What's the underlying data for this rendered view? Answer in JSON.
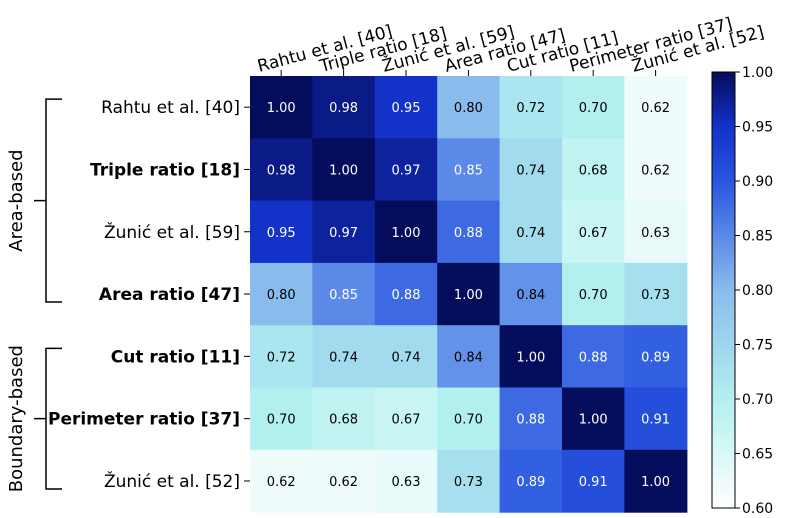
{
  "chart_data": {
    "type": "heatmap",
    "title": "",
    "labels": [
      "Rahtu et al. [40]",
      "Triple ratio [18]",
      "Žunić et al. [59]",
      "Area ratio [47]",
      "Cut ratio [11]",
      "Perimeter ratio [37]",
      "Žunić et al. [52]"
    ],
    "bold_rows": [
      false,
      true,
      false,
      true,
      true,
      true,
      false
    ],
    "values": [
      [
        1.0,
        0.98,
        0.95,
        0.8,
        0.72,
        0.7,
        0.62
      ],
      [
        0.98,
        1.0,
        0.97,
        0.85,
        0.74,
        0.68,
        0.62
      ],
      [
        0.95,
        0.97,
        1.0,
        0.88,
        0.74,
        0.67,
        0.63
      ],
      [
        0.8,
        0.85,
        0.88,
        1.0,
        0.84,
        0.7,
        0.73
      ],
      [
        0.72,
        0.74,
        0.74,
        0.84,
        1.0,
        0.88,
        0.89
      ],
      [
        0.7,
        0.68,
        0.67,
        0.7,
        0.88,
        1.0,
        0.91
      ],
      [
        0.62,
        0.62,
        0.63,
        0.73,
        0.89,
        0.91,
        1.0
      ]
    ],
    "value_range": [
      0.6,
      1.0
    ],
    "colorbar": {
      "ticks": [
        "1.00",
        "0.95",
        "0.90",
        "0.85",
        "0.80",
        "0.75",
        "0.70",
        "0.65",
        "0.60"
      ],
      "tick_values": [
        1.0,
        0.95,
        0.9,
        0.85,
        0.8,
        0.75,
        0.7,
        0.65,
        0.6
      ]
    },
    "groups": [
      {
        "name": "Area-based",
        "rows": [
          0,
          3
        ]
      },
      {
        "name": "Boundary-based",
        "rows": [
          4,
          6
        ]
      }
    ],
    "colormap": [
      "#ffffff",
      "#b2f0ef",
      "#89bced",
      "#2a55e0",
      "#1232c8",
      "#040c5c"
    ]
  }
}
